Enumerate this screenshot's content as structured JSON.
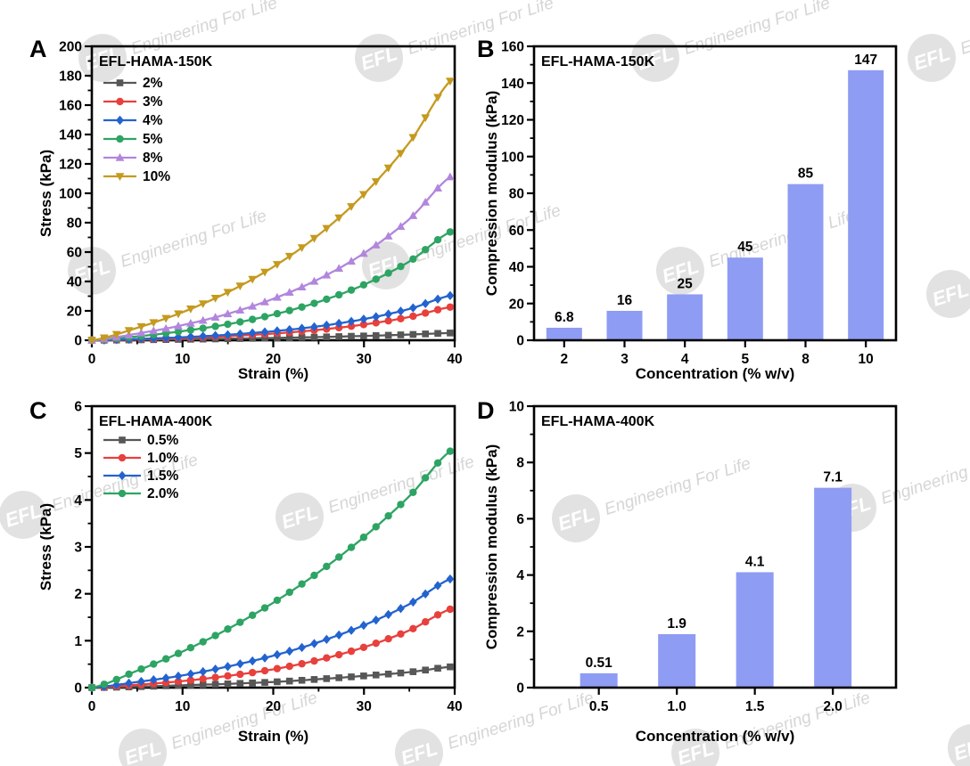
{
  "watermark": {
    "logo": "EFL",
    "text": "Engineering For Life",
    "circle_color": "#dbdbdb",
    "logo_text_color": "#ffffff",
    "text_color": "#d6d6d6"
  },
  "chart_data": [
    {
      "id": "A",
      "letter": "A",
      "type": "line",
      "title": "EFL-HAMA-150K",
      "xlabel": "Strain (%)",
      "ylabel": "Stress (kPa)",
      "xlim": [
        0,
        40
      ],
      "ylim": [
        0,
        200
      ],
      "xticks": [
        0,
        10,
        20,
        30,
        40
      ],
      "yticks": [
        0,
        20,
        40,
        60,
        80,
        100,
        120,
        140,
        160,
        180,
        200
      ],
      "legend_position": "top-left",
      "grid": false,
      "x": [
        0,
        5,
        10,
        15,
        20,
        25,
        30,
        35,
        40
      ],
      "series": [
        {
          "label": "2%",
          "color": "#575757",
          "marker": "square",
          "values": [
            0,
            0.28,
            0.62,
            1.04,
            1.55,
            2.17,
            2.93,
            3.86,
            5.0
          ]
        },
        {
          "label": "3%",
          "color": "#e8403c",
          "marker": "circle",
          "values": [
            0,
            0.62,
            1.51,
            2.77,
            4.55,
            7.1,
            10.7,
            15.8,
            23
          ]
        },
        {
          "label": "4%",
          "color": "#2363cf",
          "marker": "diamond",
          "values": [
            0,
            0.84,
            2.03,
            3.73,
            6.13,
            9.5,
            14.4,
            21.3,
            31
          ]
        },
        {
          "label": "5%",
          "color": "#2da463",
          "marker": "circle",
          "values": [
            0,
            2.6,
            6.2,
            10.9,
            17.4,
            26.1,
            37.8,
            53.6,
            75
          ]
        },
        {
          "label": "8%",
          "color": "#b286dd",
          "marker": "triangle-up",
          "values": [
            0,
            4.5,
            10.3,
            18.0,
            28.2,
            41.6,
            59.2,
            82.4,
            113
          ]
        },
        {
          "label": "10%",
          "color": "#c49a1f",
          "marker": "triangle-down",
          "values": [
            0,
            8.4,
            19.1,
            32.7,
            49.9,
            71.7,
            99.4,
            134.5,
            179
          ]
        }
      ]
    },
    {
      "id": "B",
      "letter": "B",
      "type": "bar",
      "title": "EFL-HAMA-150K",
      "xlabel": "Concentration (% w/v)",
      "ylabel": "Compression modulus (kPa)",
      "ylim": [
        0,
        160
      ],
      "yticks": [
        0,
        20,
        40,
        60,
        80,
        100,
        120,
        140,
        160
      ],
      "grid": false,
      "categories": [
        "2",
        "3",
        "4",
        "5",
        "8",
        "10"
      ],
      "values": [
        6.8,
        16,
        25,
        45,
        85,
        147
      ],
      "value_labels": [
        "6.8",
        "16",
        "25",
        "45",
        "85",
        "147"
      ],
      "bar_color": "#8f9cf3"
    },
    {
      "id": "C",
      "letter": "C",
      "type": "line",
      "title": "EFL-HAMA-400K",
      "xlabel": "Strain (%)",
      "ylabel": "Stress (kPa)",
      "xlim": [
        0,
        40
      ],
      "ylim": [
        0,
        6
      ],
      "xticks": [
        0,
        10,
        20,
        30,
        40
      ],
      "yticks": [
        0,
        1,
        2,
        3,
        4,
        5,
        6
      ],
      "legend_position": "top-left",
      "grid": false,
      "x": [
        0,
        5,
        10,
        15,
        20,
        25,
        30,
        35,
        40
      ],
      "series": [
        {
          "label": "0.5%",
          "color": "#575757",
          "marker": "square",
          "values": [
            0,
            0.02,
            0.05,
            0.08,
            0.12,
            0.18,
            0.25,
            0.33,
            0.45
          ]
        },
        {
          "label": "1.0%",
          "color": "#e8403c",
          "marker": "circle",
          "values": [
            0,
            0.06,
            0.14,
            0.25,
            0.39,
            0.59,
            0.86,
            1.22,
            1.7
          ]
        },
        {
          "label": "1.5%",
          "color": "#2363cf",
          "marker": "diamond",
          "values": [
            0,
            0.12,
            0.26,
            0.45,
            0.68,
            0.97,
            1.33,
            1.78,
            2.35
          ]
        },
        {
          "label": "2.0%",
          "color": "#2da463",
          "marker": "circle",
          "values": [
            0,
            0.36,
            0.77,
            1.25,
            1.81,
            2.46,
            3.21,
            4.08,
            5.1
          ]
        }
      ]
    },
    {
      "id": "D",
      "letter": "D",
      "type": "bar",
      "title": "EFL-HAMA-400K",
      "xlabel": "Concentration (% w/v)",
      "ylabel": "Compression modulus (kPa)",
      "ylim": [
        0,
        10
      ],
      "yticks": [
        0,
        2,
        4,
        6,
        8,
        10
      ],
      "grid": false,
      "categories": [
        "0.5",
        "1.0",
        "1.5",
        "2.0"
      ],
      "values": [
        0.51,
        1.9,
        4.1,
        7.1
      ],
      "value_labels": [
        "0.51",
        "1.9",
        "4.1",
        "7.1"
      ],
      "bar_color": "#8f9cf3"
    }
  ]
}
